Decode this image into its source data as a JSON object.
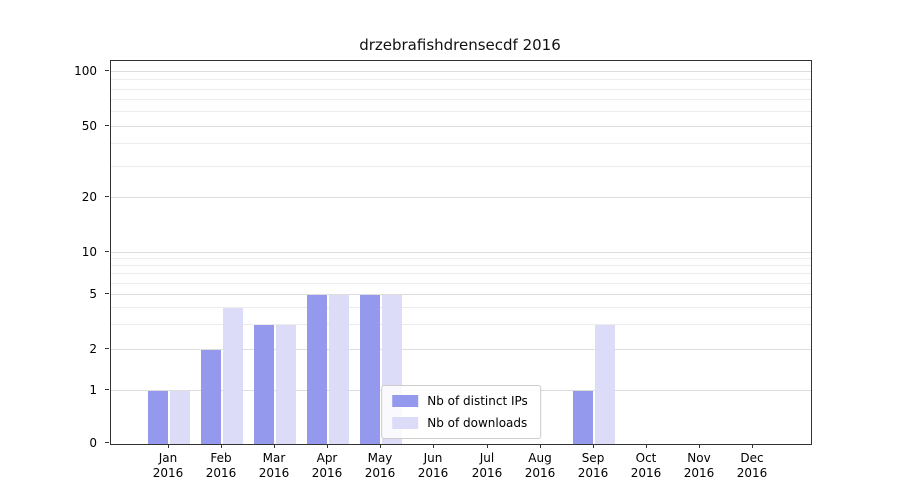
{
  "chart_data": {
    "type": "bar",
    "title": "drzebrafishdrensecdf 2016",
    "categories": [
      "Jan",
      "Feb",
      "Mar",
      "Apr",
      "May",
      "Jun",
      "Jul",
      "Aug",
      "Sep",
      "Oct",
      "Nov",
      "Dec"
    ],
    "category_year": "2016",
    "series": [
      {
        "name": "Nb of distinct IPs",
        "color": "#9599ee",
        "values": [
          1,
          2,
          3,
          5,
          5,
          0,
          0,
          0,
          1,
          0,
          0,
          0
        ]
      },
      {
        "name": "Nb of downloads",
        "color": "#dcdcf8",
        "values": [
          1,
          4,
          3,
          5,
          5,
          0,
          0,
          0,
          3,
          0,
          0,
          0
        ]
      }
    ],
    "yticks": [
      0,
      1,
      2,
      5,
      10,
      20,
      50,
      100
    ],
    "minor_gridline_values": [
      3,
      4,
      6,
      7,
      8,
      9,
      30,
      40,
      60,
      70,
      80,
      90
    ],
    "y_scale": "symlog",
    "ylim": [
      0,
      120
    ],
    "grid": "on",
    "legend_position": "lower center"
  }
}
